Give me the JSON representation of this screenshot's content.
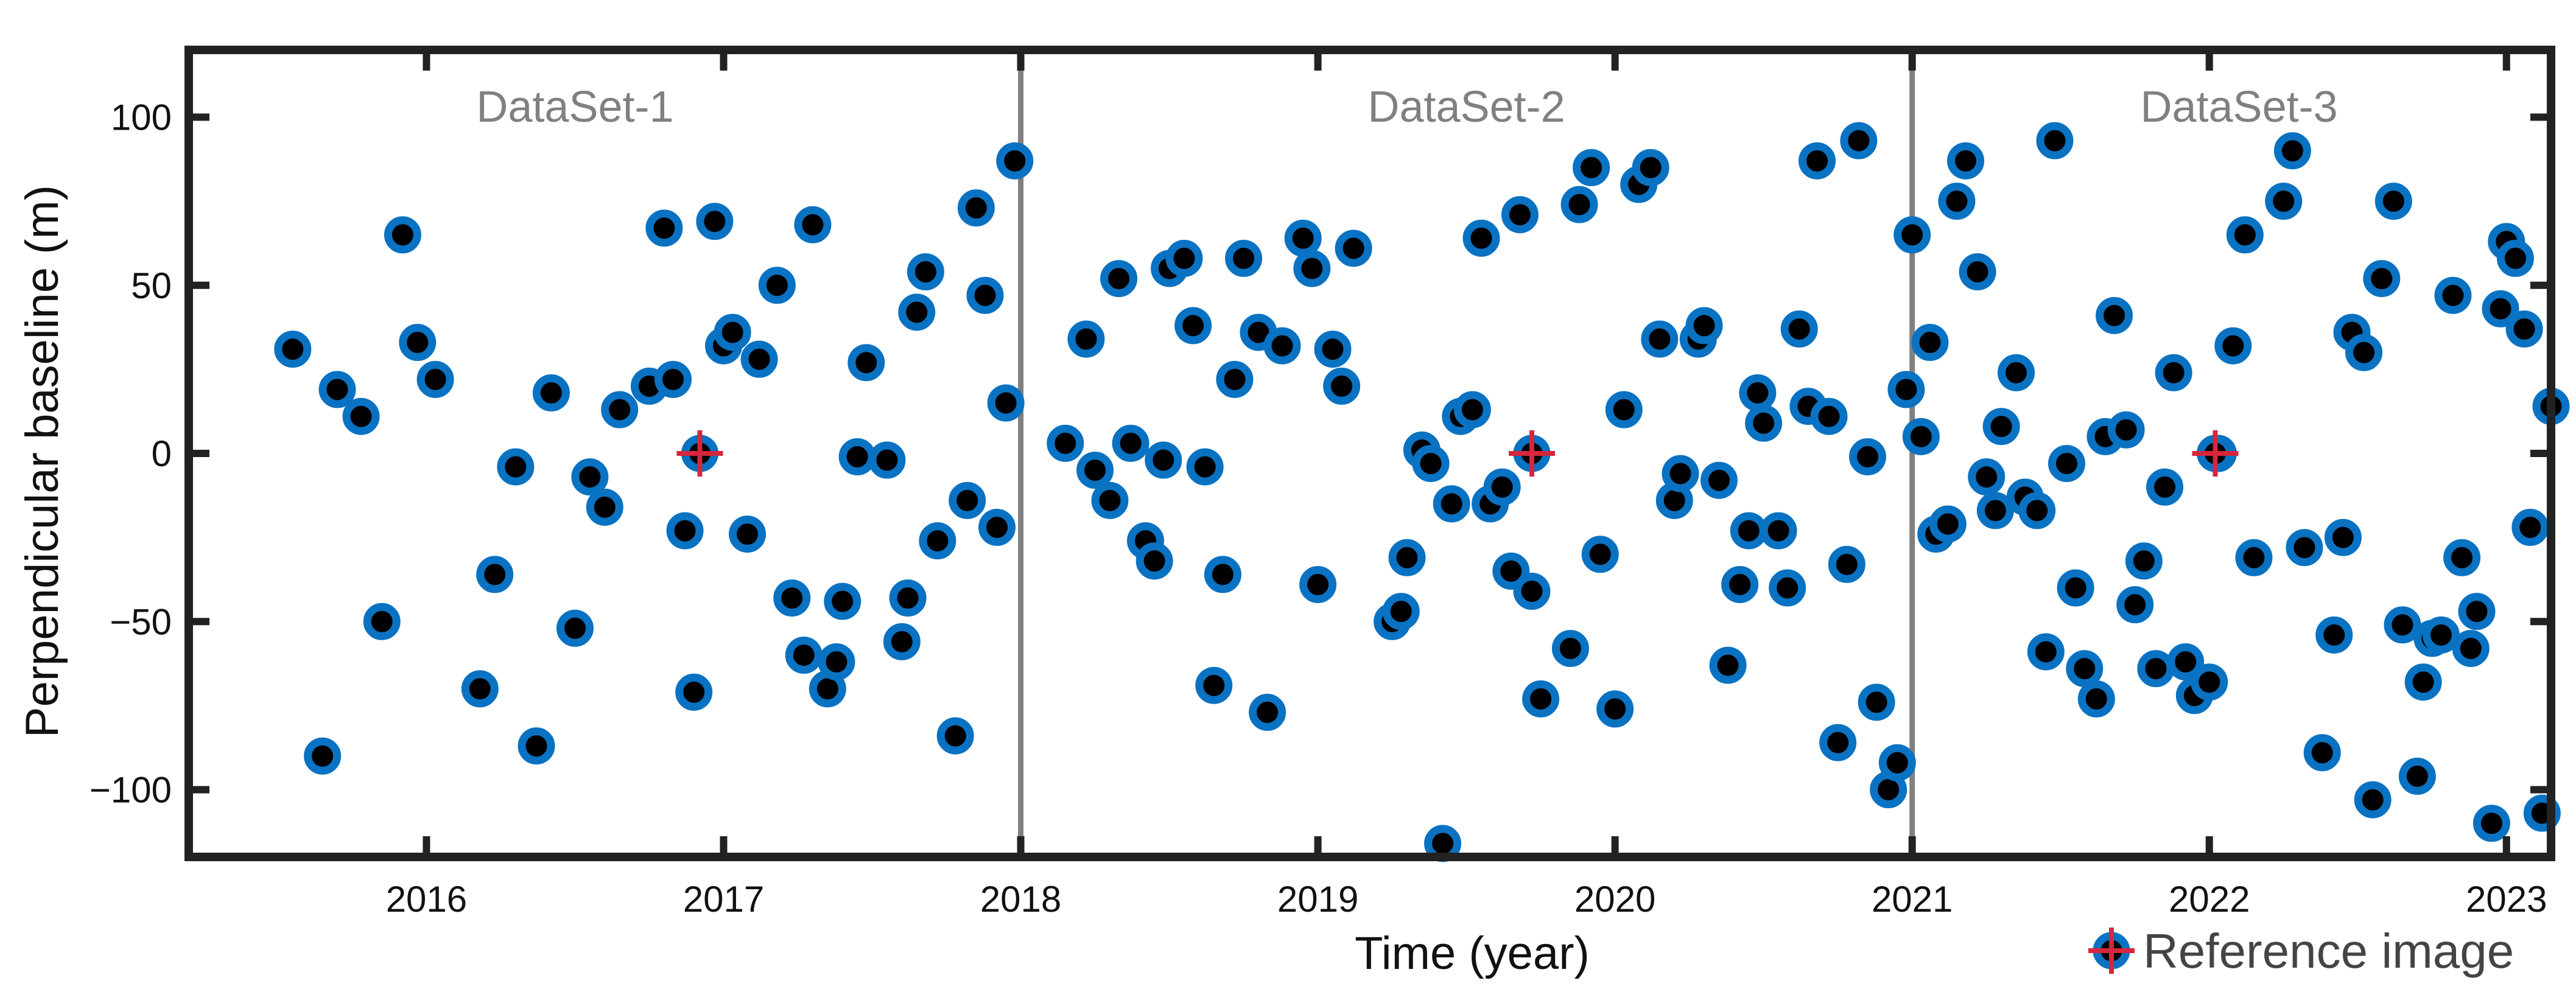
{
  "chart_data": {
    "type": "scatter",
    "title": "",
    "xlabel": "Time (year)",
    "ylabel": "Perpendicular baseline (m)",
    "xlim": [
      2015.2,
      2023.15
    ],
    "ylim": [
      -120,
      120
    ],
    "x_ticks": [
      2016,
      2017,
      2018,
      2019,
      2020,
      2021,
      2022,
      2023
    ],
    "x_tick_labels": [
      "2016",
      "2017",
      "2018",
      "2019",
      "2020",
      "2021",
      "2022",
      "2023"
    ],
    "y_ticks": [
      -100,
      -50,
      0,
      50,
      100
    ],
    "y_tick_labels": [
      "−100",
      "−50",
      "0",
      "50",
      "100"
    ],
    "grid": false,
    "legend_position": "bottom-right",
    "colors": {
      "marker_fill": "#000000",
      "marker_edge": "#0a72c2",
      "reference": "#d7263d",
      "divider": "#808080",
      "axis": "#222222"
    },
    "regions": [
      {
        "label": "DataSet-1",
        "label_x": 2016.5
      },
      {
        "label": "DataSet-2",
        "label_x": 2019.5
      },
      {
        "label": "DataSet-3",
        "label_x": 2022.1
      }
    ],
    "dividers": [
      2018,
      2021
    ],
    "legend": [
      {
        "label": "Reference image",
        "marker": "plus-circle"
      }
    ],
    "series": [
      {
        "points": [
          [
            2015.55,
            31
          ],
          [
            2015.65,
            -90
          ],
          [
            2015.7,
            19
          ],
          [
            2015.78,
            11
          ],
          [
            2015.85,
            -50
          ],
          [
            2015.92,
            65
          ],
          [
            2015.97,
            33
          ],
          [
            2016.03,
            22
          ],
          [
            2016.18,
            -70
          ],
          [
            2016.23,
            -36
          ],
          [
            2016.3,
            -4
          ],
          [
            2016.37,
            -87
          ],
          [
            2016.42,
            18
          ],
          [
            2016.5,
            -52
          ],
          [
            2016.55,
            -7
          ],
          [
            2016.6,
            -16
          ],
          [
            2016.65,
            13
          ],
          [
            2016.75,
            20
          ],
          [
            2016.8,
            67
          ],
          [
            2016.83,
            22
          ],
          [
            2016.87,
            -23
          ],
          [
            2016.9,
            -71
          ],
          [
            2016.97,
            69
          ],
          [
            2017.0,
            32
          ],
          [
            2017.03,
            36
          ],
          [
            2017.08,
            -24
          ],
          [
            2017.12,
            28
          ],
          [
            2017.18,
            50
          ],
          [
            2017.23,
            -43
          ],
          [
            2017.27,
            -60
          ],
          [
            2017.3,
            68
          ],
          [
            2017.35,
            -70
          ],
          [
            2017.38,
            -62
          ],
          [
            2017.4,
            -44
          ],
          [
            2017.45,
            -1
          ],
          [
            2017.48,
            27
          ],
          [
            2017.55,
            -2
          ],
          [
            2017.6,
            -56
          ],
          [
            2017.62,
            -43
          ],
          [
            2017.65,
            42
          ],
          [
            2017.68,
            54
          ],
          [
            2017.72,
            -26
          ],
          [
            2017.78,
            -84
          ],
          [
            2017.82,
            -14
          ],
          [
            2017.85,
            73
          ],
          [
            2017.88,
            47
          ],
          [
            2017.92,
            -22
          ],
          [
            2017.95,
            15
          ],
          [
            2017.98,
            87
          ],
          [
            2018.15,
            3
          ],
          [
            2018.22,
            34
          ],
          [
            2018.25,
            -5
          ],
          [
            2018.3,
            -14
          ],
          [
            2018.33,
            52
          ],
          [
            2018.37,
            3
          ],
          [
            2018.42,
            -26
          ],
          [
            2018.45,
            -32
          ],
          [
            2018.48,
            -2
          ],
          [
            2018.5,
            55
          ],
          [
            2018.55,
            58
          ],
          [
            2018.58,
            38
          ],
          [
            2018.62,
            -4
          ],
          [
            2018.65,
            -69
          ],
          [
            2018.68,
            -36
          ],
          [
            2018.72,
            22
          ],
          [
            2018.75,
            58
          ],
          [
            2018.8,
            36
          ],
          [
            2018.83,
            -77
          ],
          [
            2018.88,
            32
          ],
          [
            2018.95,
            64
          ],
          [
            2018.98,
            55
          ],
          [
            2019.0,
            -39
          ],
          [
            2019.05,
            31
          ],
          [
            2019.08,
            20
          ],
          [
            2019.12,
            61
          ],
          [
            2019.25,
            -50
          ],
          [
            2019.28,
            -47
          ],
          [
            2019.3,
            -31
          ],
          [
            2019.35,
            1
          ],
          [
            2019.38,
            -3
          ],
          [
            2019.42,
            -116
          ],
          [
            2019.45,
            -15
          ],
          [
            2019.48,
            11
          ],
          [
            2019.52,
            13
          ],
          [
            2019.55,
            64
          ],
          [
            2019.58,
            -15
          ],
          [
            2019.62,
            -10
          ],
          [
            2019.65,
            -35
          ],
          [
            2019.68,
            71
          ],
          [
            2019.72,
            -41
          ],
          [
            2019.75,
            -73
          ],
          [
            2019.85,
            -58
          ],
          [
            2019.88,
            74
          ],
          [
            2019.92,
            85
          ],
          [
            2019.95,
            -30
          ],
          [
            2020.0,
            -76
          ],
          [
            2020.03,
            13
          ],
          [
            2020.08,
            80
          ],
          [
            2020.12,
            85
          ],
          [
            2020.15,
            34
          ],
          [
            2020.2,
            -14
          ],
          [
            2020.22,
            -6
          ],
          [
            2020.28,
            34
          ],
          [
            2020.3,
            38
          ],
          [
            2020.35,
            -8
          ],
          [
            2020.38,
            -63
          ],
          [
            2020.42,
            -39
          ],
          [
            2020.45,
            -23
          ],
          [
            2020.48,
            18
          ],
          [
            2020.5,
            9
          ],
          [
            2020.55,
            -23
          ],
          [
            2020.58,
            -40
          ],
          [
            2020.62,
            37
          ],
          [
            2020.65,
            14
          ],
          [
            2020.68,
            87
          ],
          [
            2020.72,
            11
          ],
          [
            2020.75,
            -86
          ],
          [
            2020.78,
            -33
          ],
          [
            2020.82,
            93
          ],
          [
            2020.85,
            -1
          ],
          [
            2020.88,
            -74
          ],
          [
            2020.92,
            -100
          ],
          [
            2020.95,
            -92
          ],
          [
            2020.98,
            19
          ],
          [
            2021.0,
            65
          ],
          [
            2021.03,
            5
          ],
          [
            2021.06,
            33
          ],
          [
            2021.08,
            -24
          ],
          [
            2021.12,
            -21
          ],
          [
            2021.15,
            75
          ],
          [
            2021.18,
            87
          ],
          [
            2021.22,
            54
          ],
          [
            2021.25,
            -7
          ],
          [
            2021.28,
            -17
          ],
          [
            2021.3,
            8
          ],
          [
            2021.35,
            24
          ],
          [
            2021.38,
            -13
          ],
          [
            2021.42,
            -17
          ],
          [
            2021.45,
            -59
          ],
          [
            2021.48,
            93
          ],
          [
            2021.52,
            -3
          ],
          [
            2021.55,
            -40
          ],
          [
            2021.58,
            -64
          ],
          [
            2021.62,
            -73
          ],
          [
            2021.65,
            5
          ],
          [
            2021.68,
            41
          ],
          [
            2021.72,
            7
          ],
          [
            2021.75,
            -45
          ],
          [
            2021.78,
            -32
          ],
          [
            2021.82,
            -64
          ],
          [
            2021.85,
            -10
          ],
          [
            2021.88,
            24
          ],
          [
            2021.92,
            -62
          ],
          [
            2021.95,
            -72
          ],
          [
            2022.0,
            -68
          ],
          [
            2022.03,
            0
          ],
          [
            2022.08,
            32
          ],
          [
            2022.12,
            65
          ],
          [
            2022.15,
            -31
          ],
          [
            2022.25,
            75
          ],
          [
            2022.28,
            90
          ],
          [
            2022.32,
            -28
          ],
          [
            2022.38,
            -89
          ],
          [
            2022.42,
            -54
          ],
          [
            2022.45,
            -25
          ],
          [
            2022.48,
            36
          ],
          [
            2022.52,
            30
          ],
          [
            2022.55,
            -103
          ],
          [
            2022.58,
            52
          ],
          [
            2022.62,
            75
          ],
          [
            2022.65,
            -51
          ],
          [
            2022.7,
            -96
          ],
          [
            2022.72,
            -68
          ],
          [
            2022.75,
            -55
          ],
          [
            2022.78,
            -54
          ],
          [
            2022.82,
            47
          ],
          [
            2022.85,
            -31
          ],
          [
            2022.88,
            -58
          ],
          [
            2022.9,
            -47
          ],
          [
            2022.95,
            -110
          ],
          [
            2022.98,
            43
          ],
          [
            2023.0,
            63
          ],
          [
            2023.03,
            58
          ],
          [
            2023.06,
            37
          ],
          [
            2023.08,
            -22
          ],
          [
            2023.12,
            -107
          ],
          [
            2023.15,
            14
          ]
        ]
      }
    ],
    "reference_images": [
      [
        2016.92,
        0
      ],
      [
        2019.72,
        0
      ],
      [
        2022.02,
        0
      ]
    ]
  }
}
